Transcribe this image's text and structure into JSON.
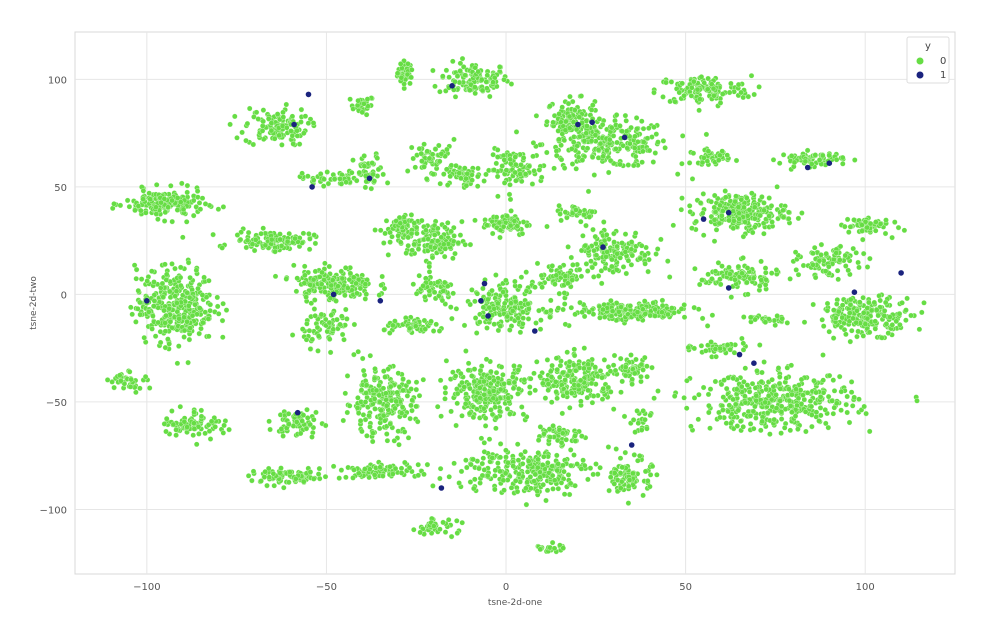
{
  "chart_data": {
    "type": "scatter",
    "xlabel": "tsne-2d-one",
    "ylabel": "tsne-2d-two",
    "xlim": [
      -120,
      125
    ],
    "ylim": [
      -130,
      122
    ],
    "x_ticks": [
      -100,
      -50,
      0,
      50,
      100
    ],
    "y_ticks": [
      -100,
      -50,
      0,
      50,
      100
    ],
    "x_tick_labels": [
      "−100",
      "−50",
      "0",
      "50",
      "100"
    ],
    "y_tick_labels": [
      "−100",
      "−50",
      "0",
      "50",
      "100"
    ],
    "grid": true,
    "legend": {
      "title": "y",
      "placement": "top-right",
      "entries": [
        "0",
        "1"
      ]
    },
    "colors": {
      "0": "#66dd44",
      "1": "#1a237e",
      "grid": "#e6e6e6"
    },
    "series_groups": [
      {
        "name": "0",
        "clusters": [
          {
            "x": -28,
            "y": 103,
            "sx": 2,
            "sy": 5,
            "n": 40
          },
          {
            "x": -40,
            "y": 88,
            "sx": 3,
            "sy": 4,
            "n": 25
          },
          {
            "x": -9,
            "y": 100,
            "sx": 9,
            "sy": 7,
            "n": 120
          },
          {
            "x": 18,
            "y": 82,
            "sx": 6,
            "sy": 8,
            "n": 100
          },
          {
            "x": 28,
            "y": 70,
            "sx": 16,
            "sy": 10,
            "n": 260
          },
          {
            "x": 55,
            "y": 95,
            "sx": 12,
            "sy": 6,
            "n": 130
          },
          {
            "x": -64,
            "y": 78,
            "sx": 8,
            "sy": 8,
            "n": 120
          },
          {
            "x": -49,
            "y": 54,
            "sx": 7,
            "sy": 3,
            "n": 50
          },
          {
            "x": -38,
            "y": 56,
            "sx": 4,
            "sy": 8,
            "n": 45
          },
          {
            "x": -20,
            "y": 63,
            "sx": 6,
            "sy": 8,
            "n": 60
          },
          {
            "x": -12,
            "y": 55,
            "sx": 5,
            "sy": 4,
            "n": 50
          },
          {
            "x": 3,
            "y": 58,
            "sx": 7,
            "sy": 8,
            "n": 80
          },
          {
            "x": 57,
            "y": 64,
            "sx": 5,
            "sy": 3,
            "n": 40
          },
          {
            "x": 85,
            "y": 63,
            "sx": 8,
            "sy": 3,
            "n": 70
          },
          {
            "x": -95,
            "y": 42,
            "sx": 10,
            "sy": 6,
            "n": 180
          },
          {
            "x": -65,
            "y": 25,
            "sx": 10,
            "sy": 4,
            "n": 110
          },
          {
            "x": -30,
            "y": 30,
            "sx": 5,
            "sy": 6,
            "n": 60
          },
          {
            "x": -20,
            "y": 25,
            "sx": 7,
            "sy": 8,
            "n": 120
          },
          {
            "x": 0,
            "y": 33,
            "sx": 6,
            "sy": 5,
            "n": 70
          },
          {
            "x": 20,
            "y": 38,
            "sx": 5,
            "sy": 3,
            "n": 40
          },
          {
            "x": 30,
            "y": 20,
            "sx": 10,
            "sy": 10,
            "n": 150
          },
          {
            "x": 65,
            "y": 38,
            "sx": 12,
            "sy": 8,
            "n": 220
          },
          {
            "x": 100,
            "y": 32,
            "sx": 6,
            "sy": 4,
            "n": 60
          },
          {
            "x": -92,
            "y": -5,
            "sx": 10,
            "sy": 16,
            "n": 350
          },
          {
            "x": -48,
            "y": 5,
            "sx": 10,
            "sy": 7,
            "n": 180
          },
          {
            "x": -50,
            "y": -15,
            "sx": 6,
            "sy": 8,
            "n": 70
          },
          {
            "x": -25,
            "y": -15,
            "sx": 8,
            "sy": 3,
            "n": 60
          },
          {
            "x": -20,
            "y": 2,
            "sx": 6,
            "sy": 6,
            "n": 60
          },
          {
            "x": 0,
            "y": -5,
            "sx": 10,
            "sy": 10,
            "n": 180
          },
          {
            "x": 15,
            "y": 8,
            "sx": 7,
            "sy": 6,
            "n": 60
          },
          {
            "x": 35,
            "y": -8,
            "sx": 15,
            "sy": 4,
            "n": 200
          },
          {
            "x": 65,
            "y": 8,
            "sx": 10,
            "sy": 6,
            "n": 110
          },
          {
            "x": 72,
            "y": -12,
            "sx": 5,
            "sy": 2,
            "n": 25
          },
          {
            "x": 90,
            "y": 15,
            "sx": 8,
            "sy": 6,
            "n": 90
          },
          {
            "x": 100,
            "y": -10,
            "sx": 12,
            "sy": 8,
            "n": 200
          },
          {
            "x": -105,
            "y": -40,
            "sx": 5,
            "sy": 4,
            "n": 40
          },
          {
            "x": -87,
            "y": -60,
            "sx": 8,
            "sy": 6,
            "n": 80
          },
          {
            "x": -58,
            "y": -60,
            "sx": 6,
            "sy": 6,
            "n": 60
          },
          {
            "x": -35,
            "y": -50,
            "sx": 9,
            "sy": 14,
            "n": 230
          },
          {
            "x": -5,
            "y": -45,
            "sx": 10,
            "sy": 12,
            "n": 250
          },
          {
            "x": 20,
            "y": -40,
            "sx": 10,
            "sy": 10,
            "n": 200
          },
          {
            "x": 35,
            "y": -35,
            "sx": 5,
            "sy": 5,
            "n": 50
          },
          {
            "x": 75,
            "y": -50,
            "sx": 20,
            "sy": 12,
            "n": 400
          },
          {
            "x": 15,
            "y": -65,
            "sx": 6,
            "sy": 5,
            "n": 50
          },
          {
            "x": 38,
            "y": -60,
            "sx": 3,
            "sy": 5,
            "n": 20
          },
          {
            "x": -60,
            "y": -85,
            "sx": 10,
            "sy": 3,
            "n": 90
          },
          {
            "x": -35,
            "y": -82,
            "sx": 10,
            "sy": 3,
            "n": 80
          },
          {
            "x": 5,
            "y": -82,
            "sx": 18,
            "sy": 10,
            "n": 260
          },
          {
            "x": 35,
            "y": -85,
            "sx": 5,
            "sy": 8,
            "n": 90
          },
          {
            "x": -20,
            "y": -108,
            "sx": 6,
            "sy": 3,
            "n": 40
          },
          {
            "x": 12,
            "y": -118,
            "sx": 4,
            "sy": 2,
            "n": 20
          },
          {
            "x": 60,
            "y": -25,
            "sx": 7,
            "sy": 3,
            "n": 50
          }
        ]
      }
    ],
    "series": [
      {
        "name": "1",
        "points": [
          [
            -55,
            93
          ],
          [
            -59,
            79
          ],
          [
            -15,
            97
          ],
          [
            20,
            79
          ],
          [
            24,
            80
          ],
          [
            33,
            73
          ],
          [
            -54,
            50
          ],
          [
            -38,
            54
          ],
          [
            55,
            35
          ],
          [
            62,
            38
          ],
          [
            84,
            59
          ],
          [
            90,
            61
          ],
          [
            -100,
            -3
          ],
          [
            -48,
            0
          ],
          [
            -35,
            -3
          ],
          [
            -6,
            5
          ],
          [
            -7,
            -3
          ],
          [
            8,
            -17
          ],
          [
            97,
            1
          ],
          [
            110,
            10
          ],
          [
            62,
            3
          ],
          [
            -58,
            -55
          ],
          [
            69,
            -32
          ],
          [
            35,
            -70
          ],
          [
            -18,
            -90
          ],
          [
            -5,
            -10
          ],
          [
            27,
            22
          ],
          [
            65,
            -28
          ]
        ]
      }
    ]
  }
}
